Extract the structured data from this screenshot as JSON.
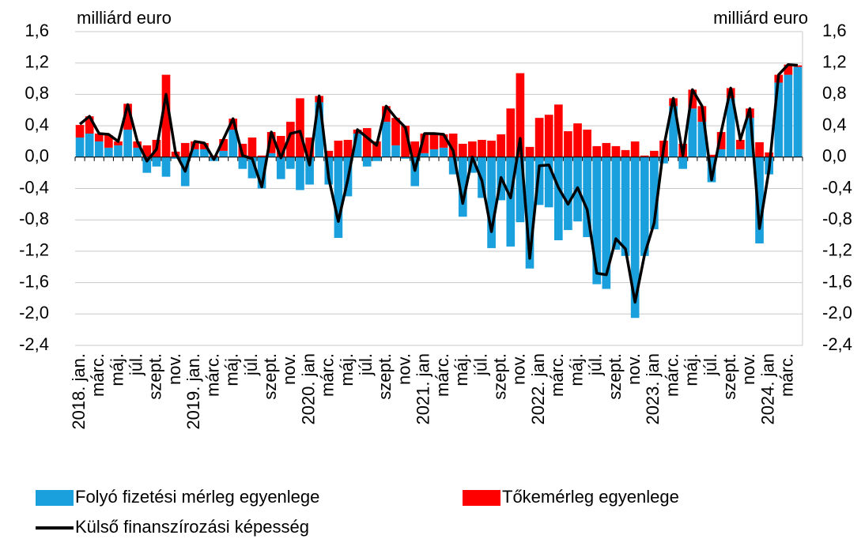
{
  "chart_data": {
    "type": "bar-line",
    "y_label": "milliárd euro",
    "y2_label": "milliárd euro",
    "categories": [
      "2018. jan.",
      null,
      "márc.",
      null,
      "máj.",
      null,
      "júl.",
      null,
      "szept.",
      null,
      "nov.",
      null,
      "2019. jan.",
      null,
      "márc.",
      null,
      "máj.",
      null,
      "júl.",
      null,
      "szept.",
      null,
      "nov.",
      null,
      "2020. jan",
      null,
      "márc.",
      null,
      "máj.",
      null,
      "júl.",
      null,
      "szept.",
      null,
      "nov.",
      null,
      "2021. jan",
      null,
      "márc.",
      null,
      "máj.",
      null,
      "júl.",
      null,
      "szept.",
      null,
      "nov.",
      null,
      "2022. jan",
      null,
      "márc.",
      null,
      "máj.",
      null,
      "júl.",
      null,
      "szept.",
      null,
      "nov.",
      null,
      "2023. jan",
      null,
      "márc.",
      null,
      "máj.",
      null,
      "júl.",
      null,
      "szept.",
      null,
      "nov.",
      null,
      "2024. jan",
      null,
      "márc.",
      null
    ],
    "series": [
      {
        "name": "Folyó fizetési mérleg egyenlege",
        "kind": "bar",
        "color": "#1aa0dc",
        "values": [
          0.25,
          0.3,
          0.2,
          0.12,
          0.15,
          0.35,
          0.12,
          -0.2,
          -0.12,
          -0.25,
          -0.02,
          -0.37,
          0.1,
          0.1,
          -0.05,
          0.08,
          0.35,
          -0.15,
          -0.27,
          -0.4,
          0.05,
          -0.28,
          -0.15,
          -0.42,
          -0.35,
          0.7,
          -0.35,
          -1.03,
          -0.5,
          0.3,
          -0.12,
          -0.05,
          0.45,
          0.15,
          -0.02,
          -0.37,
          0.05,
          0.1,
          0.12,
          -0.22,
          -0.76,
          -0.2,
          -0.52,
          -1.16,
          -0.55,
          -1.14,
          -0.83,
          -1.42,
          -0.61,
          -0.64,
          -1.06,
          -0.93,
          -0.82,
          -1.02,
          -1.62,
          -1.68,
          -1.18,
          -1.26,
          -2.05,
          -1.26,
          -0.92,
          -0.08,
          0.65,
          -0.15,
          0.62,
          0.45,
          -0.32,
          0.1,
          0.75,
          0.1,
          0.5,
          -1.1,
          -0.22,
          0.95,
          1.05,
          1.15
        ]
      },
      {
        "name": "Tőkemérleg egyenlege",
        "kind": "bar",
        "color": "#ff0000",
        "values": [
          0.16,
          0.22,
          0.1,
          0.16,
          0.05,
          0.33,
          0.08,
          0.15,
          0.22,
          1.05,
          0.07,
          0.18,
          0.1,
          0.08,
          0.02,
          0.15,
          0.14,
          0.17,
          0.25,
          0.02,
          0.27,
          0.27,
          0.45,
          0.75,
          0.25,
          0.08,
          0.08,
          0.21,
          0.22,
          0.05,
          0.37,
          0.2,
          0.2,
          0.35,
          0.4,
          0.2,
          0.25,
          0.2,
          0.17,
          0.3,
          0.17,
          0.2,
          0.22,
          0.21,
          0.29,
          0.62,
          1.07,
          0.13,
          0.5,
          0.54,
          0.67,
          0.33,
          0.43,
          0.35,
          0.14,
          0.18,
          0.14,
          0.09,
          0.2,
          0.02,
          0.08,
          0.21,
          0.1,
          0.17,
          0.24,
          0.2,
          0.03,
          0.22,
          0.13,
          0.12,
          0.12,
          0.19,
          0.06,
          0.1,
          0.13,
          0.02
        ]
      },
      {
        "name": "Külső finanszírozási képesség",
        "kind": "line",
        "color": "#000000",
        "values": [
          0.42,
          0.52,
          0.3,
          0.29,
          0.2,
          0.67,
          0.2,
          -0.05,
          0.1,
          0.8,
          0.05,
          -0.18,
          0.2,
          0.18,
          -0.03,
          0.23,
          0.49,
          0.02,
          -0.02,
          -0.38,
          0.32,
          -0.01,
          0.3,
          0.33,
          -0.1,
          0.78,
          -0.27,
          -0.82,
          -0.28,
          0.35,
          0.25,
          0.15,
          0.65,
          0.5,
          0.38,
          -0.17,
          0.3,
          0.3,
          0.29,
          0.08,
          -0.59,
          0.0,
          -0.3,
          -0.95,
          -0.26,
          -0.52,
          0.24,
          -1.29,
          -0.11,
          -0.1,
          -0.39,
          -0.6,
          -0.39,
          -0.67,
          -1.48,
          -1.5,
          -1.04,
          -1.17,
          -1.85,
          -1.24,
          -0.84,
          0.13,
          0.75,
          0.02,
          0.86,
          0.65,
          -0.29,
          0.32,
          0.88,
          0.22,
          0.62,
          -0.91,
          -0.16,
          1.05,
          1.18,
          1.17
        ]
      }
    ],
    "ylim": [
      -2.4,
      1.6
    ],
    "yticks": [
      {
        "value": 1.6,
        "label": "1,6"
      },
      {
        "value": 1.2,
        "label": "1,2"
      },
      {
        "value": 0.8,
        "label": "0,8"
      },
      {
        "value": 0.4,
        "label": "0,4"
      },
      {
        "value": 0,
        "label": "0,0"
      },
      {
        "value": -0.4,
        "label": "-0,4"
      },
      {
        "value": -0.8,
        "label": "-0,8"
      },
      {
        "value": -1.2,
        "label": "-1,2"
      },
      {
        "value": -1.6,
        "label": "-1,6"
      },
      {
        "value": -2.0,
        "label": "-2,0"
      },
      {
        "value": -2.4,
        "label": "-2,4"
      }
    ],
    "y2lim": [
      -2.4,
      1.6
    ],
    "y2ticks": [
      {
        "value": 1.6,
        "label": "1,6"
      },
      {
        "value": 1.2,
        "label": "1,2"
      },
      {
        "value": 0.8,
        "label": "0,8"
      },
      {
        "value": 0.4,
        "label": "0,4"
      },
      {
        "value": 0,
        "label": "0,0"
      },
      {
        "value": -0.4,
        "label": "-0,4"
      },
      {
        "value": -0.8,
        "label": "-0,8"
      },
      {
        "value": -1.2,
        "label": "-1,2"
      },
      {
        "value": -1.6,
        "label": "-1,6"
      },
      {
        "value": -2.0,
        "label": "-2,0"
      },
      {
        "value": -2.4,
        "label": "-2,4"
      }
    ],
    "grid": true
  }
}
